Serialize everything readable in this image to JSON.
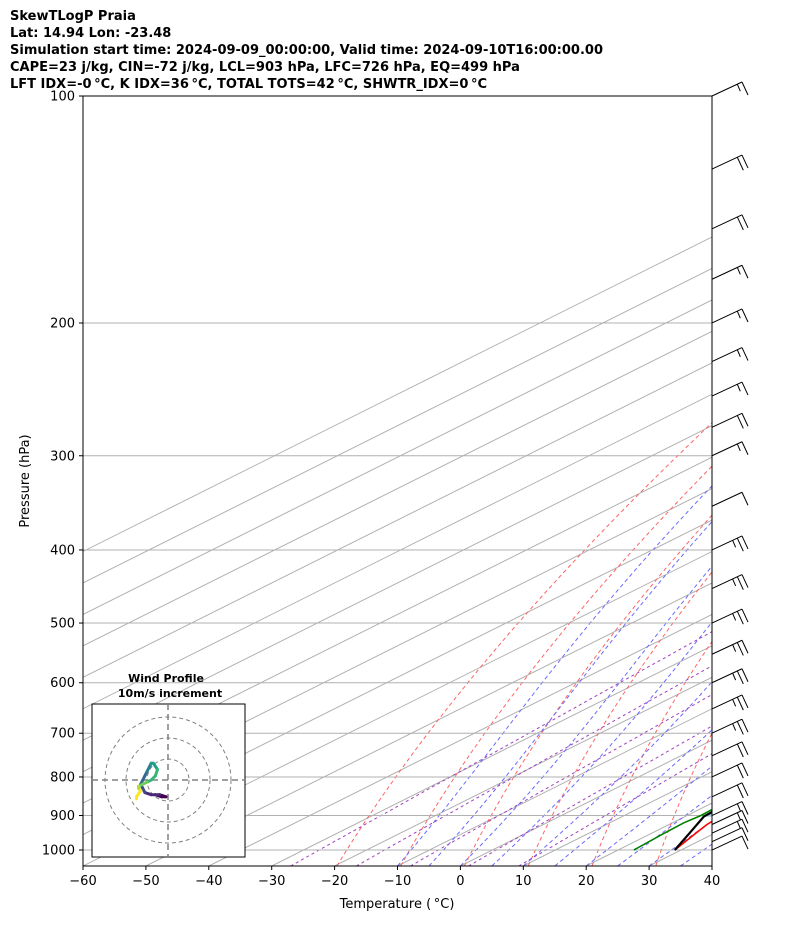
{
  "chart_data": {
    "type": "skewt",
    "title_lines": [
      "SkewTLogP Praia",
      "Lat: 14.94   Lon: -23.48",
      "Simulation start time: 2024-09-09_00:00:00, Valid time: 2024-09-10T16:00:00.00",
      "CAPE=23 j/kg, CIN=-72 j/kg, LCL=903 hPa, LFC=726 hPa, EQ=499 hPa",
      "LFT IDX=-0 °C, K IDX=36 °C, TOTAL TOTS=42 °C, SHWTR_IDX=0 °C"
    ],
    "xlabel": "Temperature ( °C)",
    "ylabel": "Pressure (hPa)",
    "xlim": [
      -60,
      40
    ],
    "ylim": [
      1050,
      100
    ],
    "x_ticks": [
      -60,
      -50,
      -40,
      -30,
      -20,
      -10,
      0,
      10,
      20,
      30,
      40
    ],
    "x_tick_labels": [
      "−60",
      "−50",
      "−40",
      "−30",
      "−20",
      "−10",
      "0",
      "10",
      "20",
      "30",
      "40"
    ],
    "p_ticks": [
      1000,
      900,
      800,
      700,
      600,
      500,
      400,
      300,
      200,
      100
    ],
    "p_tick_labels": [
      "1000",
      "900",
      "800",
      "700",
      "600",
      "500",
      "400",
      "300",
      "200",
      "100"
    ],
    "series": [
      {
        "name": "Temperature",
        "color": "#ff0000",
        "p": [
          1000,
          950,
          925,
          900,
          850,
          800,
          700,
          600,
          500,
          430,
          400,
          340,
          300,
          250,
          200,
          180,
          155,
          145,
          140,
          100
        ],
        "t": [
          29.0,
          27.0,
          26.0,
          25.5,
          24.5,
          23.8,
          21.2,
          18.8,
          16.0,
          13.0,
          11.0,
          5.0,
          0.0,
          -7.0,
          -16.0,
          -21.0,
          -27.0,
          -29.0,
          -30.0,
          -51.0
        ]
      },
      {
        "name": "Dewpoint",
        "color": "#008000",
        "p": [
          1000,
          950,
          920,
          900,
          880,
          850,
          800,
          700,
          600,
          520,
          480,
          440,
          420,
          390,
          350,
          330,
          300,
          280,
          240,
          200,
          185,
          170,
          155,
          145,
          130,
          100
        ],
        "t": [
          22.5,
          22.0,
          21.8,
          22.2,
          22.0,
          21.2,
          20.0,
          16.5,
          11.5,
          6.5,
          1.5,
          -3.0,
          -3.0,
          -2.0,
          -6.0,
          -11.0,
          -10.0,
          -13.0,
          -22.0,
          -33.0,
          -37.0,
          -40.0,
          -43.0,
          -45.0,
          -48.0,
          -55.0
        ]
      },
      {
        "name": "Parcel",
        "color": "#000000",
        "p": [
          1000,
          950,
          903,
          850,
          800,
          726,
          700,
          600,
          499,
          400,
          300,
          250,
          200,
          150,
          100
        ],
        "t": [
          29.0,
          26.0,
          23.0,
          22.3,
          21.6,
          20.6,
          20.2,
          18.4,
          16.0,
          11.5,
          3.0,
          -5.0,
          -18.0,
          -37.0,
          -66.0
        ]
      }
    ],
    "cape_shading": {
      "from_hpa": 499,
      "to_hpa": 100,
      "color": "#a5c7e1"
    },
    "cin_shading": {
      "from_hpa": 903,
      "to_hpa": 726,
      "color": "#a5c7e1"
    },
    "wind_barbs": [
      {
        "p": 1000,
        "kt": 10
      },
      {
        "p": 975,
        "kt": 10
      },
      {
        "p": 950,
        "kt": 15
      },
      {
        "p": 925,
        "kt": 15
      },
      {
        "p": 900,
        "kt": 15
      },
      {
        "p": 850,
        "kt": 20
      },
      {
        "p": 800,
        "kt": 20
      },
      {
        "p": 750,
        "kt": 20
      },
      {
        "p": 700,
        "kt": 25
      },
      {
        "p": 650,
        "kt": 25
      },
      {
        "p": 600,
        "kt": 25
      },
      {
        "p": 550,
        "kt": 25
      },
      {
        "p": 500,
        "kt": 25
      },
      {
        "p": 450,
        "kt": 25
      },
      {
        "p": 400,
        "kt": 25
      },
      {
        "p": 350,
        "kt": 10
      },
      {
        "p": 300,
        "kt": 15
      },
      {
        "p": 275,
        "kt": 20
      },
      {
        "p": 250,
        "kt": 15
      },
      {
        "p": 225,
        "kt": 15
      },
      {
        "p": 200,
        "kt": 15
      },
      {
        "p": 175,
        "kt": 15
      },
      {
        "p": 150,
        "kt": 20
      },
      {
        "p": 125,
        "kt": 20
      },
      {
        "p": 100,
        "kt": 15
      }
    ],
    "hodograph": {
      "title": "Wind Profile",
      "subtitle": "10m/s increment",
      "rings_ms": [
        10,
        20,
        30
      ],
      "colormap": "viridis",
      "points": [
        [
          -6,
          -7
        ],
        [
          -3,
          -8
        ],
        [
          -1,
          -8
        ],
        [
          -4,
          -7
        ],
        [
          -8,
          -7
        ],
        [
          -11,
          -6
        ],
        [
          -12,
          -4
        ],
        [
          -13,
          -2
        ],
        [
          -12,
          0
        ],
        [
          -11,
          2
        ],
        [
          -10,
          4
        ],
        [
          -9,
          6
        ],
        [
          -8,
          8
        ],
        [
          -7,
          8
        ],
        [
          -5,
          5
        ],
        [
          -6,
          2
        ],
        [
          -8,
          0
        ],
        [
          -10,
          -1
        ],
        [
          -12,
          -2
        ],
        [
          -14,
          -3
        ],
        [
          -14,
          -4
        ],
        [
          -13,
          -5
        ],
        [
          -15,
          -8
        ],
        [
          -15,
          -9
        ]
      ]
    },
    "grid": true
  }
}
